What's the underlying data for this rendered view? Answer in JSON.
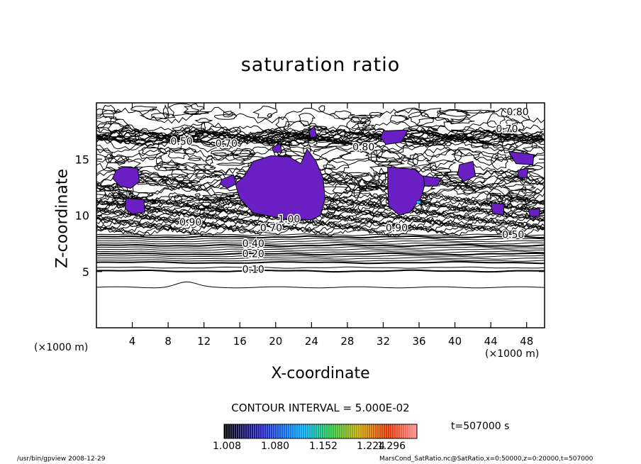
{
  "chart_data": {
    "type": "contour",
    "title": "saturation ratio",
    "xlabel": "X-coordinate",
    "ylabel": "Z-coordinate",
    "x_unit": "(×1000 m)",
    "y_unit": "(×1000 m)",
    "xlim": [
      0,
      50
    ],
    "ylim": [
      0,
      20
    ],
    "x_ticks": [
      4,
      8,
      12,
      16,
      20,
      24,
      28,
      32,
      36,
      40,
      44,
      48
    ],
    "y_ticks": [
      5,
      10,
      15
    ],
    "contour_labels": [
      {
        "text": "0.80",
        "x": 47,
        "z": 19.2
      },
      {
        "text": "0.70",
        "x": 45.8,
        "z": 17.7
      },
      {
        "text": "0.50",
        "x": 9.5,
        "z": 16.6
      },
      {
        "text": "0.70",
        "x": 14.5,
        "z": 16.4
      },
      {
        "text": "0.80",
        "x": 29.8,
        "z": 16.1
      },
      {
        "text": "1.00",
        "x": 21.5,
        "z": 9.7
      },
      {
        "text": "0.90",
        "x": 10.5,
        "z": 9.4
      },
      {
        "text": "0.70",
        "x": 19.5,
        "z": 8.9
      },
      {
        "text": "0.90",
        "x": 33.5,
        "z": 8.9
      },
      {
        "text": "0.50",
        "x": 46.5,
        "z": 8.3
      },
      {
        "text": "0.40",
        "x": 17.5,
        "z": 7.5
      },
      {
        "text": "0.20",
        "x": 17.5,
        "z": 6.6
      },
      {
        "text": "0.10",
        "x": 17.5,
        "z": 5.2
      }
    ],
    "shaded_threshold": 1.0,
    "colorbar": {
      "min": 1.008,
      "max": 1.296,
      "ticks": [
        "1.008",
        "1.080",
        "1.152",
        "1.224",
        "1.296"
      ]
    },
    "contour_interval_text": "CONTOUR INTERVAL = 5.000E-02",
    "time_text": "t=507000 s"
  },
  "footer": {
    "left": "/usr/bin/gpview   2008-12-29",
    "right": "MarsCond_SatRatio.nc@SatRatio,x=0:50000,z=0:20000,t=507000"
  },
  "colors": {
    "supersaturated": "#6a1fc4",
    "line": "#000000"
  }
}
